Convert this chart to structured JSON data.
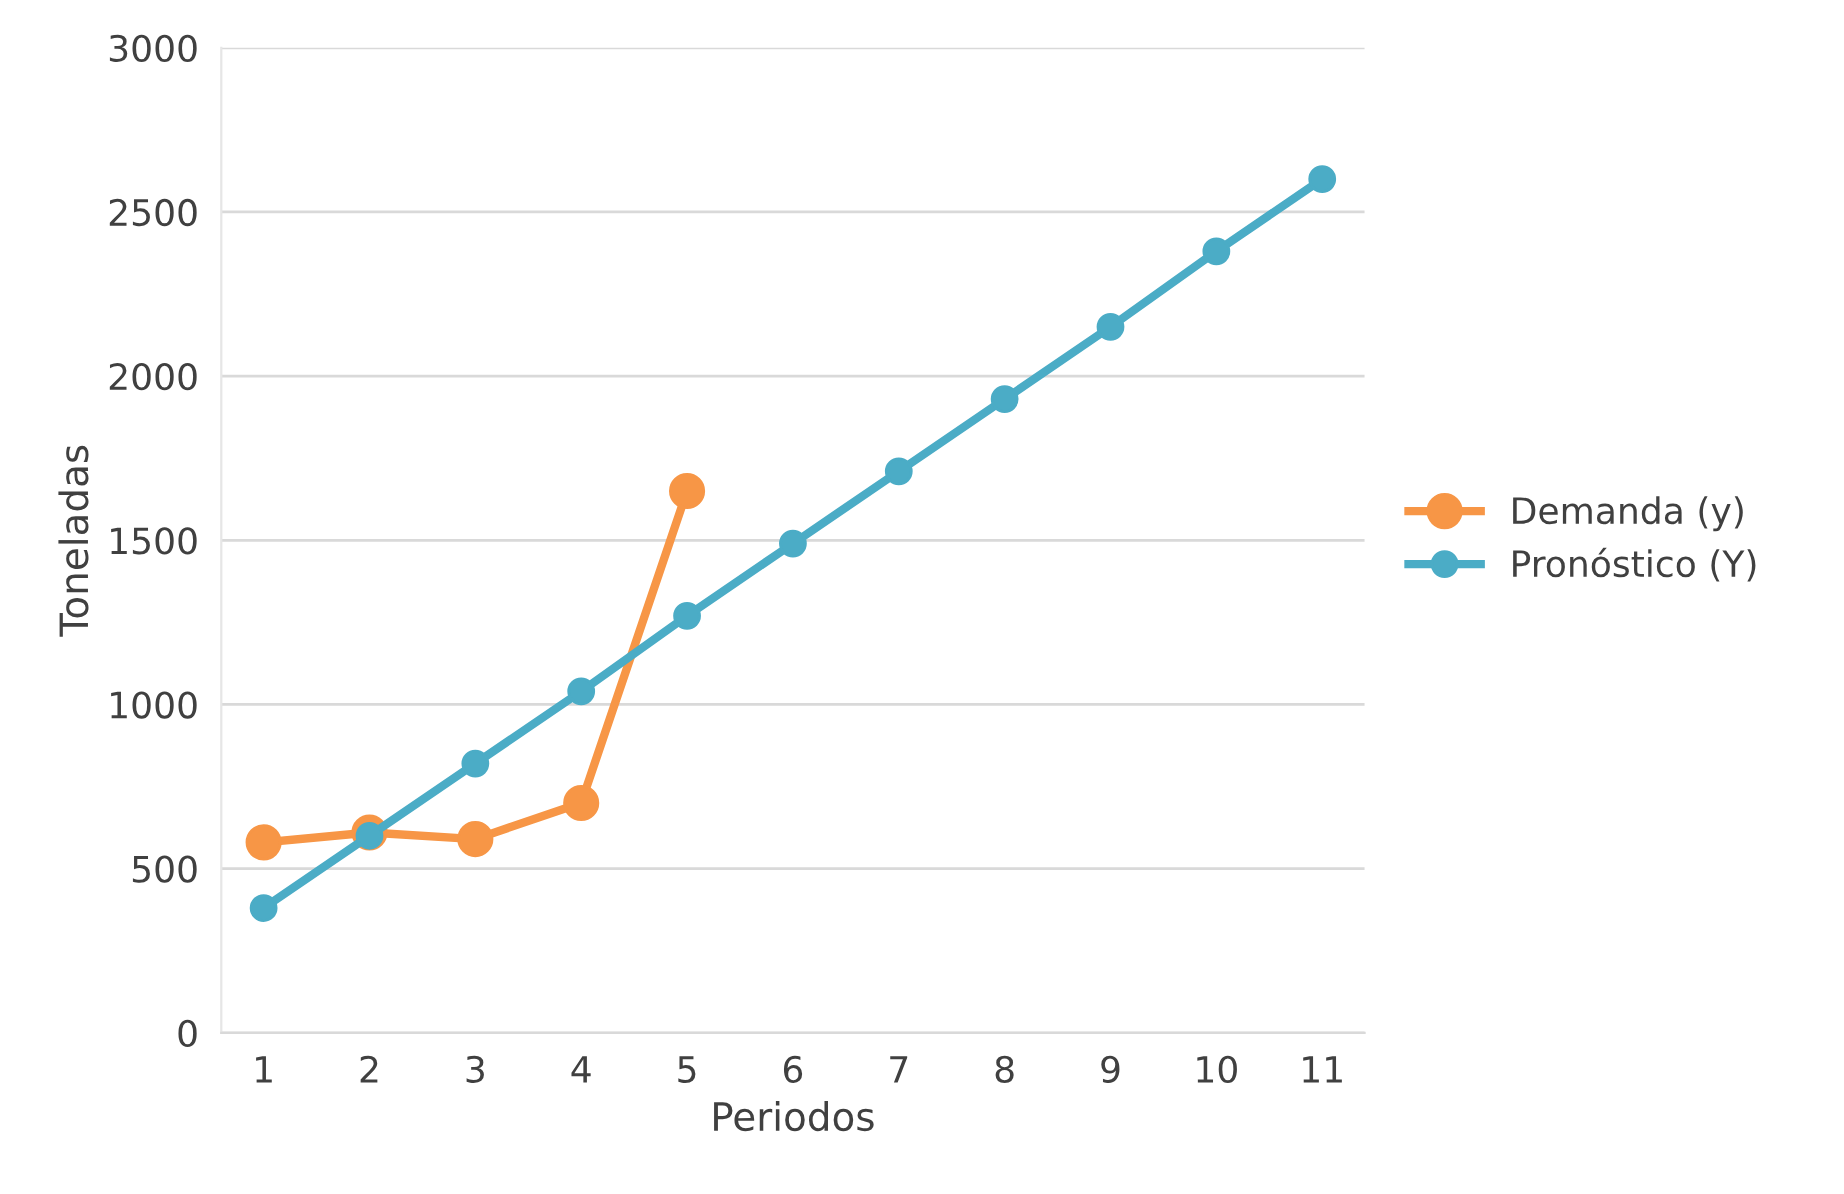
{
  "chart_data": {
    "type": "line",
    "xlabel": "Periodos",
    "ylabel": "Toneladas",
    "categories": [
      "1",
      "2",
      "3",
      "4",
      "5",
      "6",
      "7",
      "8",
      "9",
      "10",
      "11"
    ],
    "series": [
      {
        "name": "Demanda (y)",
        "color": "#f79646",
        "values": [
          580,
          610,
          590,
          700,
          1650,
          null,
          null,
          null,
          null,
          null,
          null
        ]
      },
      {
        "name": "Pronóstico (Y)",
        "color": "#4bacc6",
        "values": [
          380,
          600,
          820,
          1040,
          1270,
          1490,
          1710,
          1930,
          2150,
          2380,
          2600
        ]
      }
    ],
    "ylim": [
      0,
      3000
    ],
    "yticks": [
      0,
      500,
      1000,
      1500,
      2000,
      2500,
      3000
    ],
    "grid": "y",
    "legend": "right",
    "marker": "circle",
    "line_style": "solid"
  }
}
